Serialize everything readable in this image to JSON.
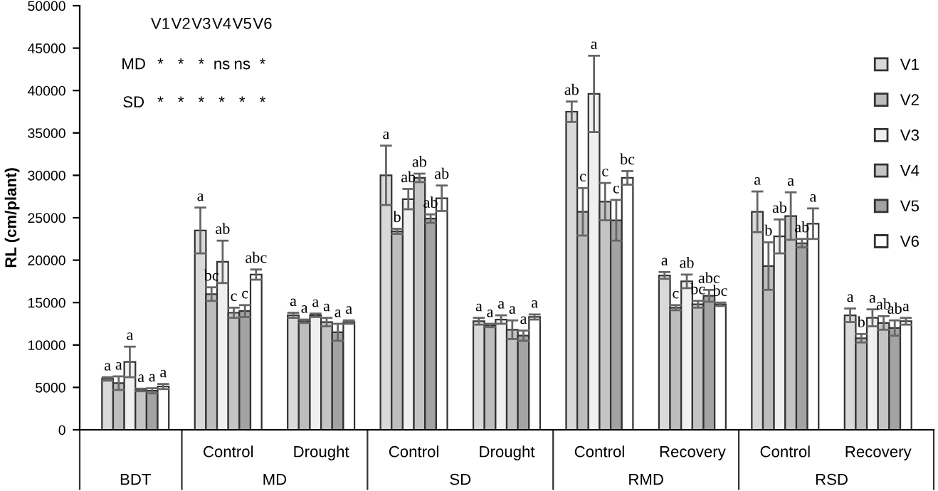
{
  "chart_data": {
    "type": "bar",
    "ylabel": "RL (cm/plant)",
    "categories": [
      null,
      "Control",
      "Drought",
      "Control",
      "Drought",
      "Control",
      "Recovery",
      "Control",
      "Recovery"
    ],
    "series": [
      {
        "name": "V1",
        "color": "#d9d9d9",
        "values": [
          6000,
          23500,
          13500,
          30000,
          12800,
          37500,
          18200,
          25700,
          13500
        ],
        "errors": [
          200,
          2700,
          300,
          3500,
          400,
          1200,
          400,
          2400,
          800
        ],
        "value_labels": [
          "a",
          "a",
          "a",
          "a",
          "a",
          "ab",
          "a",
          "a",
          "a"
        ]
      },
      {
        "name": "V2",
        "color": "#bdbdbd",
        "values": [
          5500,
          16000,
          12800,
          23400,
          12300,
          25700,
          14400,
          19300,
          10800
        ],
        "errors": [
          800,
          800,
          200,
          300,
          200,
          2800,
          300,
          2800,
          500
        ],
        "value_labels": [
          "a",
          "bc",
          "a",
          "b",
          "a",
          "c",
          "c",
          "b",
          "b"
        ]
      },
      {
        "name": "V3",
        "color": "#f0f0f0",
        "values": [
          8000,
          19800,
          13500,
          27200,
          13000,
          39600,
          17500,
          22800,
          13200
        ],
        "errors": [
          1800,
          2500,
          200,
          1200,
          500,
          4500,
          800,
          2000,
          1000
        ],
        "value_labels": [
          "a",
          "ab",
          "a",
          "ab",
          "a",
          "a",
          "ab",
          "ab",
          "a"
        ]
      },
      {
        "name": "V4",
        "color": "#c4c4c4",
        "values": [
          4700,
          13800,
          12700,
          29700,
          11800,
          26900,
          14800,
          25200,
          12600
        ],
        "errors": [
          150,
          600,
          500,
          500,
          1100,
          2200,
          400,
          2800,
          800
        ],
        "value_labels": [
          "a",
          "c",
          "a",
          "ab",
          "a",
          "c",
          "bc",
          "a",
          "ab"
        ]
      },
      {
        "name": "V5",
        "color": "#a3a3a3",
        "values": [
          4600,
          14000,
          11500,
          24900,
          11100,
          24700,
          15800,
          22000,
          12000
        ],
        "errors": [
          300,
          700,
          1000,
          500,
          600,
          2400,
          700,
          500,
          900
        ],
        "value_labels": [
          "a",
          "c",
          "a",
          "ab",
          "a",
          "c",
          "abc",
          "ab",
          "ab"
        ]
      },
      {
        "name": "V6",
        "color": "#ffffff",
        "values": [
          5100,
          18300,
          12700,
          27300,
          13300,
          29700,
          14800,
          24300,
          12800
        ],
        "errors": [
          300,
          600,
          200,
          1500,
          300,
          800,
          200,
          1800,
          400
        ],
        "value_labels": [
          "a",
          "abc",
          "a",
          "ab",
          "a",
          "bc",
          "bc",
          "a",
          "a"
        ]
      }
    ],
    "ylim": [
      0,
      50000
    ],
    "yticks": [
      0,
      5000,
      10000,
      15000,
      20000,
      25000,
      30000,
      35000,
      40000,
      45000,
      50000
    ],
    "annotations": [
      "BDT",
      "MD",
      "SD",
      "RMD",
      "RSD",
      "V1",
      "V2",
      "V3",
      "V4",
      "V5",
      "V6",
      "MD",
      "*",
      "*",
      "*",
      "ns",
      "ns",
      "*",
      "SD",
      "*",
      "*",
      "*",
      "*",
      "*",
      "*"
    ],
    "legend": "right",
    "grid": false
  }
}
